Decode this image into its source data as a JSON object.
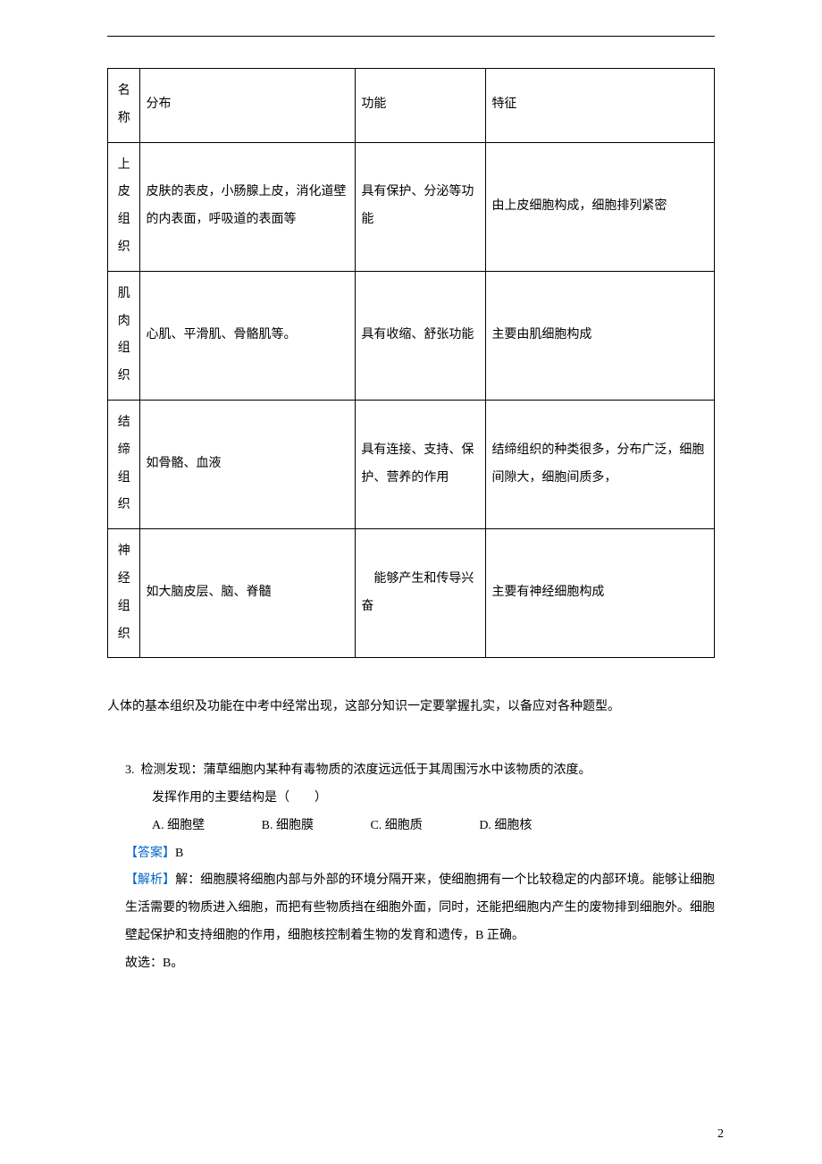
{
  "table": {
    "columns": [
      "名称",
      "分布",
      "功能",
      "特征"
    ],
    "rows": [
      {
        "name": "上皮组织",
        "distribution": "皮肤的表皮，小肠腺上皮，消化道壁的内表面，呼吸道的表面等",
        "function": "具有保护、分泌等功能",
        "feature": "由上皮细胞构成，细胞排列紧密"
      },
      {
        "name": "肌肉组织",
        "distribution": "心肌、平滑肌、骨骼肌等。",
        "function": "具有收缩、舒张功能",
        "feature": "主要由肌细胞构成"
      },
      {
        "name": "结缔组织",
        "distribution": "如骨骼、血液",
        "function": "具有连接、支持、保护、营养的作用",
        "feature": "结缔组织的种类很多，分布广泛，细胞间隙大，细胞间质多，"
      },
      {
        "name": "神经组织",
        "distribution": "如大脑皮层、脑、脊髓",
        "function": "　能够产生和传导兴奋",
        "feature": "主要有神经细胞构成"
      }
    ]
  },
  "paragraph": "人体的基本组织及功能在中考中经常出现，这部分知识一定要掌握扎实，以备应对各种题型。",
  "question": {
    "number": "3.",
    "text1": "检测发现：蒲草细胞内某种有毒物质的浓度远远低于其周围污水中该物质的浓度。",
    "text2": "发挥作用的主要结构是（　　）",
    "options": {
      "A": "A. 细胞壁",
      "B": "B. 细胞膜",
      "C": "C. 细胞质",
      "D": "D. 细胞核"
    }
  },
  "answer": {
    "label": "【答案】",
    "value": "B"
  },
  "explanation": {
    "label": "【解析】",
    "text": "解：细胞膜将细胞内部与外部的环境分隔开来，使细胞拥有一个比较稳定的内部环境。能够让细胞生活需要的物质进入细胞，而把有些物质挡在细胞外面，同时，还能把细胞内产生的废物排到细胞外。细胞壁起保护和支持细胞的作用，细胞核控制着生物的发育和遗传，B 正确。",
    "conclusion": "故选：B。"
  },
  "pageNumber": "2"
}
